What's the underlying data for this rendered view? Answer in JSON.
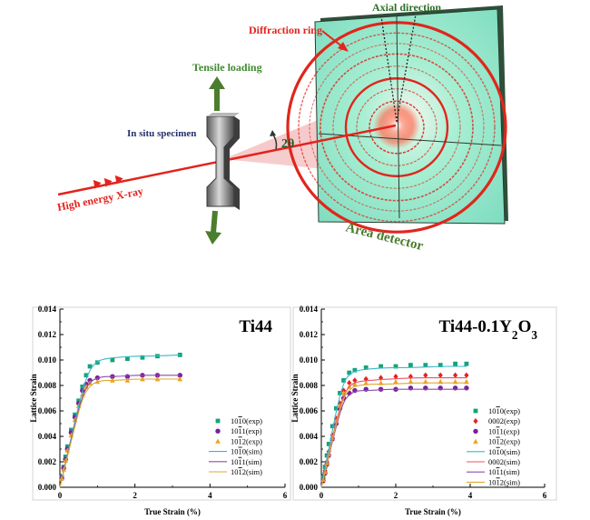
{
  "schematic": {
    "axial_direction": "Axial direction",
    "diffraction_ring": "Diffraction ring",
    "tensile_loading": "Tensile loading",
    "in_situ_specimen": "In situ specimen",
    "two_theta": "2θ",
    "xray": "High energy X-ray",
    "area_detector": "Area detector"
  },
  "chart_data": [
    {
      "type": "scatter",
      "title": "Ti44",
      "xlabel": "True Strain (%)",
      "ylabel": "Lattice Strain",
      "xlim": [
        0,
        6
      ],
      "ylim": [
        0,
        0.014
      ],
      "xticks": [
        "0",
        "2",
        "4",
        "6"
      ],
      "yticks": [
        "0.000",
        "0.002",
        "0.004",
        "0.006",
        "0.008",
        "0.010",
        "0.012",
        "0.014"
      ],
      "series": [
        {
          "name": "10<u>1</u>0(exp)",
          "kind": "exp",
          "marker": "square",
          "color": "#14a37a",
          "x": [
            0.05,
            0.1,
            0.15,
            0.2,
            0.3,
            0.4,
            0.5,
            0.6,
            0.7,
            0.8,
            1.0,
            1.4,
            1.8,
            2.2,
            2.6,
            3.2
          ],
          "y": [
            0.0008,
            0.0016,
            0.0024,
            0.0032,
            0.0045,
            0.0057,
            0.0068,
            0.0079,
            0.0088,
            0.0095,
            0.0098,
            0.01,
            0.0101,
            0.0102,
            0.0103,
            0.0104
          ]
        },
        {
          "name": "10<u>1</u>1(exp)",
          "kind": "exp",
          "marker": "circle",
          "color": "#7b1d9a",
          "x": [
            0.05,
            0.1,
            0.15,
            0.2,
            0.3,
            0.4,
            0.5,
            0.6,
            0.7,
            0.8,
            1.0,
            1.4,
            1.8,
            2.2,
            2.6,
            3.2
          ],
          "y": [
            0.0007,
            0.0015,
            0.0022,
            0.003,
            0.0043,
            0.0055,
            0.0066,
            0.0076,
            0.0081,
            0.0084,
            0.0086,
            0.0087,
            0.0087,
            0.0088,
            0.0088,
            0.0088
          ]
        },
        {
          "name": "10<u>1</u>2(exp)",
          "kind": "exp",
          "marker": "triangle",
          "color": "#f0a21e",
          "x": [
            0.05,
            0.1,
            0.15,
            0.2,
            0.3,
            0.4,
            0.5,
            0.6,
            0.7,
            0.8,
            1.0,
            1.4,
            1.8,
            2.2,
            2.6,
            3.2
          ],
          "y": [
            0.0007,
            0.0014,
            0.0021,
            0.0029,
            0.0041,
            0.0053,
            0.0064,
            0.0073,
            0.0079,
            0.0082,
            0.0083,
            0.0084,
            0.0084,
            0.0085,
            0.0085,
            0.0085
          ]
        },
        {
          "name": "10<u>1</u>0(sim)",
          "kind": "sim",
          "color": "#3cb8c8",
          "x": [
            0,
            0.2,
            0.4,
            0.6,
            0.8,
            1.0,
            1.2,
            1.5,
            2.0,
            2.5,
            3.2
          ],
          "y": [
            0,
            0.0026,
            0.0052,
            0.0076,
            0.0093,
            0.0099,
            0.0101,
            0.0102,
            0.0103,
            0.0103,
            0.0104
          ]
        },
        {
          "name": "10<u>1</u>1(sim)",
          "kind": "sim",
          "color": "#8a4fb0",
          "x": [
            0,
            0.2,
            0.4,
            0.6,
            0.8,
            1.0,
            1.2,
            1.5,
            2.0,
            2.5,
            3.2
          ],
          "y": [
            0,
            0.0025,
            0.005,
            0.0072,
            0.0083,
            0.0086,
            0.0087,
            0.0087,
            0.0088,
            0.0088,
            0.0088
          ]
        },
        {
          "name": "10<u>1</u>2(sim)",
          "kind": "sim",
          "color": "#e0a830",
          "x": [
            0,
            0.2,
            0.4,
            0.6,
            0.8,
            1.0,
            1.2,
            1.5,
            2.0,
            2.5,
            3.2
          ],
          "y": [
            0,
            0.0024,
            0.0048,
            0.007,
            0.008,
            0.0083,
            0.0084,
            0.0084,
            0.0085,
            0.0085,
            0.0085
          ]
        }
      ]
    },
    {
      "type": "scatter",
      "title": "Ti44-0.1Y<sub>2</sub>O<sub>3</sub>",
      "xlabel": "True Strain (%)",
      "ylabel": "Lattice Strain",
      "xlim": [
        0,
        6
      ],
      "ylim": [
        0,
        0.014
      ],
      "xticks": [
        "0",
        "2",
        "4",
        "6"
      ],
      "yticks": [
        "0.000",
        "0.002",
        "0.004",
        "0.006",
        "0.008",
        "0.010",
        "0.012",
        "0.014"
      ],
      "series": [
        {
          "name": "10<u>1</u>0(exp)",
          "kind": "exp",
          "marker": "square",
          "color": "#14a37a",
          "x": [
            0.05,
            0.1,
            0.15,
            0.2,
            0.3,
            0.4,
            0.5,
            0.6,
            0.75,
            0.9,
            1.2,
            1.6,
            2.0,
            2.4,
            2.8,
            3.2,
            3.6,
            3.9
          ],
          "y": [
            0.0008,
            0.0016,
            0.0025,
            0.0034,
            0.0048,
            0.0062,
            0.0074,
            0.0084,
            0.009,
            0.0092,
            0.0094,
            0.0095,
            0.0095,
            0.0096,
            0.0096,
            0.0096,
            0.0097,
            0.0097
          ]
        },
        {
          "name": "0002(exp)",
          "kind": "exp",
          "marker": "diamond",
          "color": "#e2221f",
          "x": [
            0.05,
            0.1,
            0.15,
            0.2,
            0.3,
            0.4,
            0.5,
            0.6,
            0.75,
            0.9,
            1.2,
            1.6,
            2.0,
            2.4,
            2.8,
            3.2,
            3.6,
            3.9
          ],
          "y": [
            0.0006,
            0.0013,
            0.002,
            0.0028,
            0.0041,
            0.0054,
            0.0066,
            0.0076,
            0.0082,
            0.0084,
            0.0085,
            0.0086,
            0.0087,
            0.0087,
            0.0088,
            0.0088,
            0.0088,
            0.0088
          ]
        },
        {
          "name": "10<u>1</u>1(exp)",
          "kind": "exp",
          "marker": "circle",
          "color": "#7b1d9a",
          "x": [
            0.05,
            0.1,
            0.15,
            0.2,
            0.3,
            0.4,
            0.5,
            0.6,
            0.75,
            0.9,
            1.2,
            1.6,
            2.0,
            2.4,
            2.8,
            3.2,
            3.6,
            3.9
          ],
          "y": [
            0.0005,
            0.0011,
            0.0018,
            0.0025,
            0.0038,
            0.005,
            0.0062,
            0.007,
            0.0074,
            0.0076,
            0.0077,
            0.0077,
            0.0077,
            0.0078,
            0.0078,
            0.0078,
            0.0078,
            0.0078
          ]
        },
        {
          "name": "10<u>1</u>2(exp)",
          "kind": "exp",
          "marker": "triangle",
          "color": "#f0a21e",
          "x": [
            0.05,
            0.1,
            0.15,
            0.2,
            0.3,
            0.4,
            0.5,
            0.6,
            0.75,
            0.9,
            1.2,
            1.6,
            2.0,
            2.4,
            2.8,
            3.2,
            3.6,
            3.9
          ],
          "y": [
            0.0006,
            0.0012,
            0.0019,
            0.0026,
            0.0039,
            0.0052,
            0.0064,
            0.0074,
            0.0079,
            0.0081,
            0.0082,
            0.0082,
            0.0083,
            0.0083,
            0.0083,
            0.0083,
            0.0083,
            0.0083
          ]
        },
        {
          "name": "10<u>1</u>0(sim)",
          "kind": "sim",
          "color": "#3cb8c8",
          "x": [
            0,
            0.2,
            0.4,
            0.6,
            0.8,
            1.0,
            1.3,
            1.8,
            2.5,
            3.2,
            3.9
          ],
          "y": [
            0,
            0.003,
            0.006,
            0.0083,
            0.009,
            0.0092,
            0.0093,
            0.0094,
            0.0094,
            0.0095,
            0.0095
          ]
        },
        {
          "name": "0002(sim)",
          "kind": "sim",
          "color": "#e8556b",
          "x": [
            0,
            0.2,
            0.4,
            0.6,
            0.8,
            1.0,
            1.3,
            1.8,
            2.5,
            3.2,
            3.9
          ],
          "y": [
            0,
            0.0026,
            0.0052,
            0.0073,
            0.0081,
            0.0083,
            0.0084,
            0.0085,
            0.0086,
            0.0086,
            0.0086
          ]
        },
        {
          "name": "10<u>1</u>1(sim)",
          "kind": "sim",
          "color": "#8a4fb0",
          "x": [
            0,
            0.2,
            0.4,
            0.6,
            0.8,
            1.0,
            1.3,
            1.8,
            2.5,
            3.2,
            3.9
          ],
          "y": [
            0,
            0.0024,
            0.0048,
            0.0068,
            0.0074,
            0.0076,
            0.0076,
            0.0077,
            0.0077,
            0.0077,
            0.0077
          ]
        },
        {
          "name": "10<u>1</u>2(sim)",
          "kind": "sim",
          "color": "#e0a830",
          "x": [
            0,
            0.2,
            0.4,
            0.6,
            0.8,
            1.0,
            1.3,
            1.8,
            2.5,
            3.2,
            3.9
          ],
          "y": [
            0,
            0.0025,
            0.005,
            0.0071,
            0.0078,
            0.008,
            0.0081,
            0.0081,
            0.0082,
            0.0082,
            0.0082
          ]
        }
      ]
    }
  ]
}
